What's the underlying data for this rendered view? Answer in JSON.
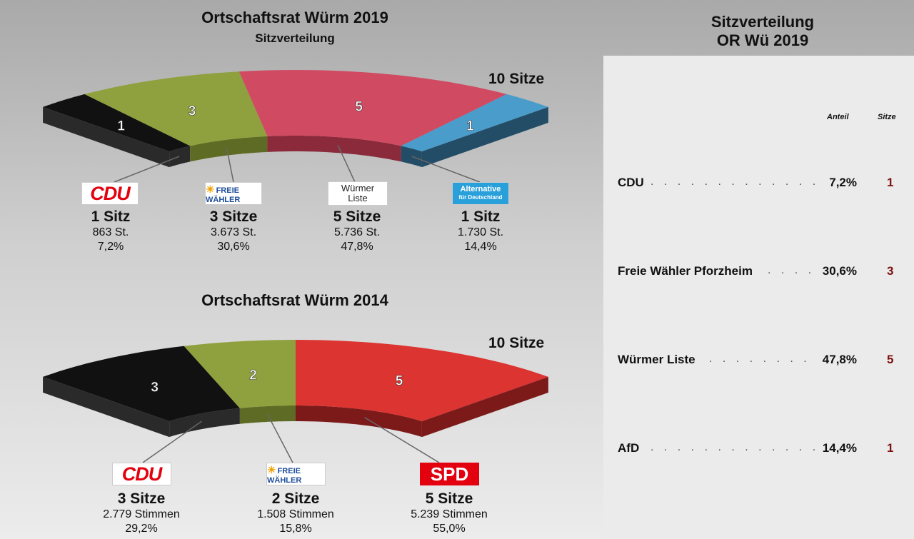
{
  "chart_data": [
    {
      "type": "semicircle-parliament",
      "title": "Ortschaftsrat Würm 2019",
      "subtitle": "Sitzverteilung",
      "total_label": "10 Sitze",
      "parties": [
        {
          "logo_text": "CDU",
          "seats": 1,
          "seats_label": "1 Sitz",
          "votes": "863 St.",
          "share": "7,2%",
          "color": "#111111",
          "side_color": "#2a2a2a"
        },
        {
          "logo_text": "FREIE WÄHLER",
          "seats": 3,
          "seats_label": "3 Sitze",
          "votes": "3.673 St.",
          "share": "30,6%",
          "color": "#8fa03e",
          "side_color": "#5e6b24"
        },
        {
          "logo_text": "Würmer Liste",
          "seats": 5,
          "seats_label": "5 Sitze",
          "votes": "5.736 St.",
          "share": "47,8%",
          "color": "#d04a62",
          "side_color": "#8a2a3a"
        },
        {
          "logo_text": "Alternative für Deutschland",
          "seats": 1,
          "seats_label": "1 Sitz",
          "votes": "1.730 St.",
          "share": "14,4%",
          "color": "#4a9ccb",
          "side_color": "#234d66"
        }
      ]
    },
    {
      "type": "semicircle-parliament",
      "title": "Ortschaftsrat Würm 2014",
      "total_label": "10 Sitze",
      "parties": [
        {
          "logo_text": "CDU",
          "seats": 3,
          "seats_label": "3 Sitze",
          "votes": "2.779 Stimmen",
          "share": "29,2%",
          "color": "#111111",
          "side_color": "#2a2a2a"
        },
        {
          "logo_text": "FREIE WÄHLER",
          "seats": 2,
          "seats_label": "2 Sitze",
          "votes": "1.508 Stimmen",
          "share": "15,8%",
          "color": "#8fa03e",
          "side_color": "#5e6b24"
        },
        {
          "logo_text": "SPD",
          "seats": 5,
          "seats_label": "5 Sitze",
          "votes": "5.239 Stimmen",
          "share": "55,0%",
          "color": "#dc3431",
          "side_color": "#7c1a1a"
        }
      ]
    }
  ],
  "panel": {
    "title_line1": "Sitzverteilung",
    "title_line2": "OR Wü 2019",
    "header_share": "Anteil",
    "header_seats": "Sitze",
    "rows": [
      {
        "name": "CDU",
        "share": "7,2%",
        "seats": "1"
      },
      {
        "name": "Freie Wähler Pforzheim",
        "share": "30,6%",
        "seats": "3"
      },
      {
        "name": "Würmer Liste",
        "share": "47,8%",
        "seats": "5"
      },
      {
        "name": "AfD",
        "share": "14,4%",
        "seats": "1"
      }
    ]
  }
}
